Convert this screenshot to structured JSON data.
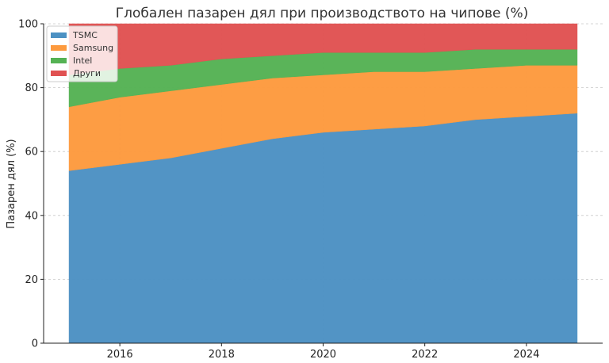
{
  "chart_data": {
    "type": "area",
    "stacked": true,
    "title": "Глобален пазарен дял при производството на чипове (%)",
    "xlabel": "",
    "ylabel": "Пазарен дял (%)",
    "x": [
      2015,
      2016,
      2017,
      2018,
      2019,
      2020,
      2021,
      2022,
      2023,
      2024,
      2025
    ],
    "xlim": [
      2014.5,
      2025.5
    ],
    "ylim": [
      0,
      100
    ],
    "xticks": [
      "2016",
      "2018",
      "2020",
      "2022",
      "2024"
    ],
    "yticks": [
      "0",
      "20",
      "40",
      "60",
      "80",
      "100"
    ],
    "grid": true,
    "legend_position": "top-left",
    "series": [
      {
        "name": "TSMC",
        "color": "#4c91c3",
        "values": [
          54,
          56,
          58,
          61,
          64,
          66,
          67,
          68,
          70,
          71,
          72
        ]
      },
      {
        "name": "Samsung",
        "color": "#fd9a3e",
        "values": [
          20,
          21,
          21,
          20,
          19,
          18,
          18,
          17,
          16,
          16,
          15
        ]
      },
      {
        "name": "Intel",
        "color": "#55b254",
        "values": [
          10,
          9,
          8,
          8,
          7,
          7,
          6,
          6,
          6,
          5,
          5
        ]
      },
      {
        "name": "Други",
        "color": "#e05252",
        "values": [
          16,
          14,
          13,
          11,
          10,
          9,
          9,
          9,
          8,
          8,
          8
        ]
      }
    ]
  }
}
